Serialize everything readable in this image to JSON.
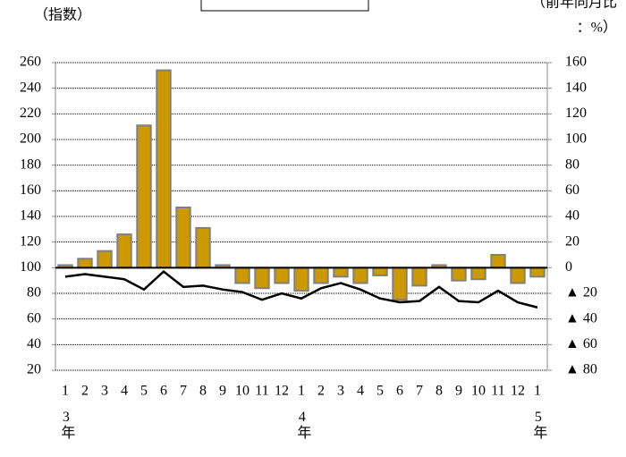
{
  "chart_data": {
    "type": "bar-line",
    "y_label": "（指数）",
    "y2_label": [
      "（前年同月比",
      "：%）"
    ],
    "categories": [
      "1",
      "2",
      "3",
      "4",
      "5",
      "6",
      "7",
      "8",
      "9",
      "10",
      "11",
      "12",
      "1",
      "2",
      "3",
      "4",
      "5",
      "6",
      "7",
      "8",
      "9",
      "10",
      "11",
      "12",
      "1"
    ],
    "year_labels": [
      "3年",
      "4年",
      "5年"
    ],
    "series": [
      {
        "type": "bar",
        "axis": "y2",
        "color": "#cc9900",
        "values": [
          2,
          7,
          13,
          26,
          111,
          154,
          47,
          31,
          2,
          -12,
          -16,
          -12,
          -18,
          -12,
          -7,
          -12,
          -6,
          -25,
          -14,
          2,
          -10,
          -9,
          10,
          -12,
          -7
        ]
      },
      {
        "type": "line",
        "color": "#000000",
        "values": [
          93,
          95,
          93,
          91,
          83,
          97,
          85,
          86,
          83,
          81,
          75,
          80,
          76,
          84,
          88,
          83,
          76,
          73,
          74,
          85,
          74,
          73,
          82,
          73,
          69
        ]
      }
    ],
    "ylim": [
      20,
      260
    ],
    "yticks": [
      20,
      40,
      60,
      80,
      100,
      120,
      140,
      160,
      180,
      200,
      220,
      240,
      260
    ],
    "y2lim": [
      -80,
      160
    ],
    "y2ticks": [
      {
        "value": -80,
        "label": "▲ 80"
      },
      {
        "value": -60,
        "label": "▲ 60"
      },
      {
        "value": -40,
        "label": "▲ 40"
      },
      {
        "value": -20,
        "label": "▲ 20"
      },
      0,
      20,
      40,
      60,
      80,
      100,
      120,
      140,
      160
    ],
    "grid": true
  }
}
